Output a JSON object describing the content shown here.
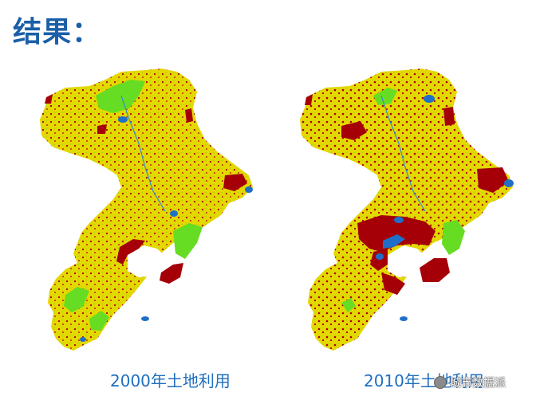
{
  "heading": {
    "title": "结果："
  },
  "maps": [
    {
      "caption": "2000年土地利用"
    },
    {
      "caption": "2010年土地利用"
    }
  ],
  "watermark": {
    "text": "城市数据派",
    "icon": "wechat-logo-icon"
  },
  "colors": {
    "cropland_yellow": "#e3d800",
    "builtup_red": "#a50008",
    "vegetation_green": "#66dd22",
    "water_blue": "#1f6fc8",
    "title_blue": "#1b5fa8",
    "caption_blue": "#1f6fbf"
  }
}
